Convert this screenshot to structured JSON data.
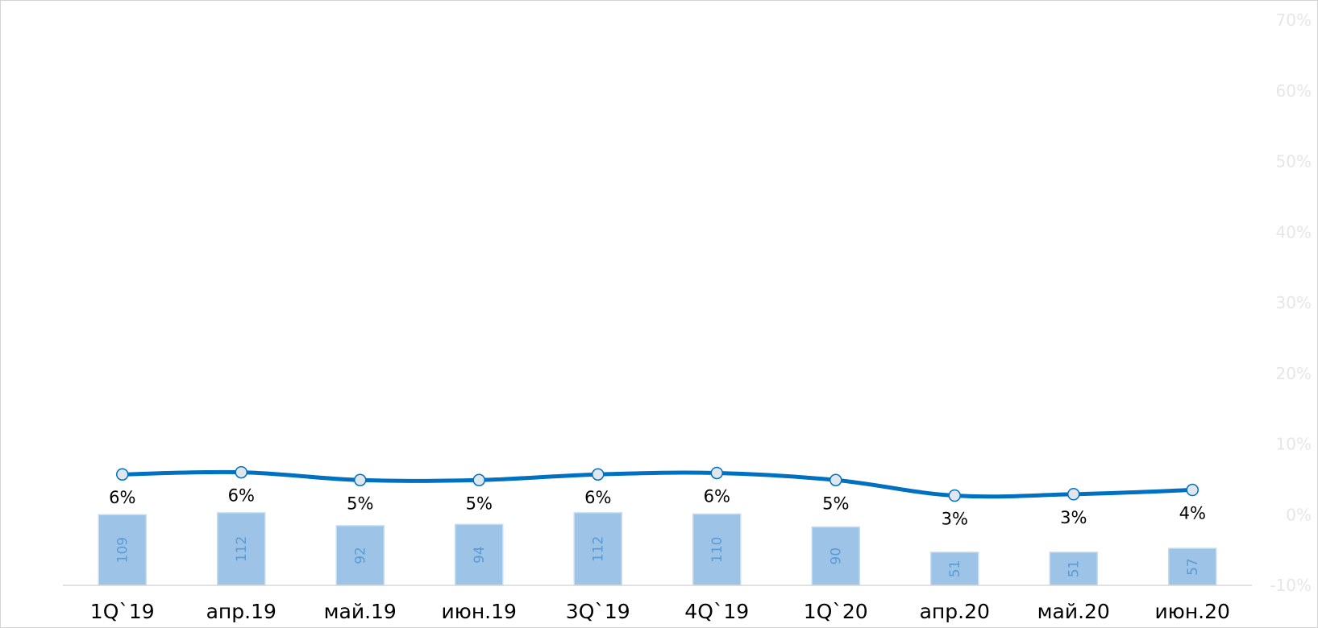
{
  "chart_data": {
    "type": "bar",
    "categories": [
      "1Q`19",
      "апр.19",
      "май.19",
      "июн.19",
      "3Q`19",
      "4Q`19",
      "1Q`20",
      "апр.20",
      "май.20",
      "июн.20"
    ],
    "series": [
      {
        "type": "bar",
        "axis": "left",
        "values": [
          109,
          112,
          92,
          94,
          112,
          110,
          90,
          51,
          51,
          57
        ],
        "labels": [
          "109",
          "112",
          "92",
          "94",
          "112",
          "110",
          "90",
          "51",
          "51",
          "57"
        ]
      },
      {
        "type": "line",
        "axis": "right",
        "values": [
          0.057,
          0.06,
          0.049,
          0.049,
          0.057,
          0.059,
          0.049,
          0.027,
          0.029,
          0.035
        ],
        "labels": [
          "6%",
          "6%",
          "5%",
          "5%",
          "6%",
          "6%",
          "5%",
          "3%",
          "3%",
          "4%"
        ]
      }
    ],
    "y2_ticks": [
      "70%",
      "60%",
      "50%",
      "40%",
      "30%",
      "20%",
      "10%",
      "0%",
      "-10%"
    ],
    "y2lim": [
      -0.1,
      0.7
    ],
    "grid": false,
    "legend": "none",
    "colors": {
      "bar_fill": "#9dc3e6",
      "bar_stroke": "#c5dcf0",
      "line": "#0070c0",
      "marker_fill": "#dfe6ee",
      "axis_tick_color": "#e6e6e6"
    }
  }
}
